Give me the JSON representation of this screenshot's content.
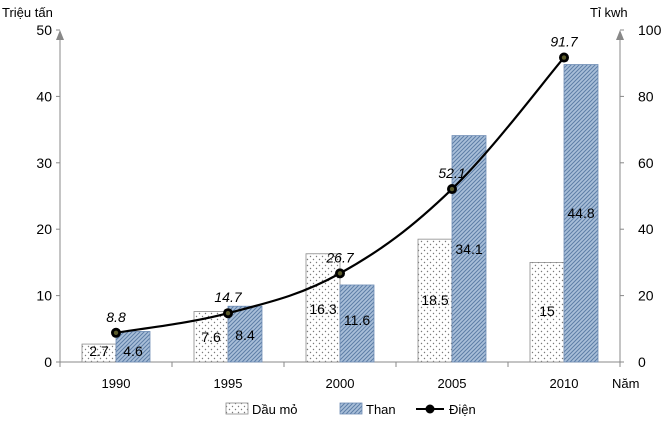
{
  "chart_data": {
    "type": "bar",
    "categories": [
      "1990",
      "1995",
      "2000",
      "2005",
      "2010"
    ],
    "y_left": {
      "label": "Triệu tấn",
      "min": 0,
      "max": 50,
      "ticks": [
        "0",
        "10",
        "20",
        "30",
        "40",
        "50"
      ]
    },
    "y_right": {
      "label": "Tỉ kwh",
      "min": 0,
      "max": 100,
      "ticks": [
        "0",
        "20",
        "40",
        "60",
        "80",
        "100"
      ]
    },
    "x_label": "Năm",
    "series": [
      {
        "name": "Dầu mỏ",
        "kind": "bar",
        "axis": "left",
        "values": [
          2.7,
          7.6,
          16.3,
          18.5,
          15
        ],
        "labels": [
          "2.7",
          "7.6",
          "16.3",
          "18.5",
          "15"
        ],
        "pattern": "dotted",
        "color": "#ffffff"
      },
      {
        "name": "Than",
        "kind": "bar",
        "axis": "left",
        "values": [
          4.6,
          8.4,
          11.6,
          34.1,
          44.8
        ],
        "labels": [
          "4.6",
          "8.4",
          "11.6",
          "34.1",
          "44.8"
        ],
        "pattern": "hatched",
        "color": "#9fb7d3"
      },
      {
        "name": "Điện",
        "kind": "line",
        "axis": "right",
        "values": [
          8.8,
          14.7,
          26.7,
          52.1,
          91.7
        ],
        "labels": [
          "8.8",
          "14.7",
          "26.7",
          "52.1",
          "91.7"
        ],
        "color": "#000000"
      }
    ],
    "legend_position": "bottom",
    "grid": false
  }
}
